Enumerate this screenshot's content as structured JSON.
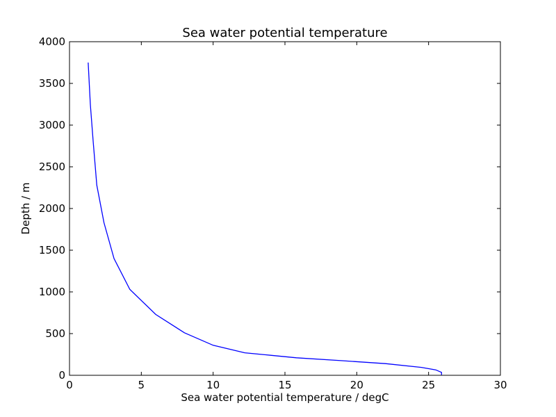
{
  "chart_data": {
    "type": "line",
    "title": "Sea water potential temperature",
    "xlabel": "Sea water potential temperature / degC",
    "ylabel": "Depth / m",
    "xlim": [
      0,
      30
    ],
    "ylim": [
      0,
      4000
    ],
    "xticks": [
      "0",
      "5",
      "10",
      "15",
      "20",
      "25",
      "30"
    ],
    "yticks": [
      "0",
      "500",
      "1000",
      "1500",
      "2000",
      "2500",
      "3000",
      "3500",
      "4000"
    ],
    "grid": false,
    "series": [
      {
        "color": "#0000ff",
        "points": [
          {
            "x": 25.9,
            "y": 5
          },
          {
            "x": 25.9,
            "y": 35
          },
          {
            "x": 25.5,
            "y": 65
          },
          {
            "x": 24.5,
            "y": 95
          },
          {
            "x": 22.0,
            "y": 140
          },
          {
            "x": 19.0,
            "y": 175
          },
          {
            "x": 15.8,
            "y": 210
          },
          {
            "x": 14.0,
            "y": 240
          },
          {
            "x": 12.2,
            "y": 270
          },
          {
            "x": 10.0,
            "y": 360
          },
          {
            "x": 8.0,
            "y": 510
          },
          {
            "x": 6.0,
            "y": 730
          },
          {
            "x": 4.2,
            "y": 1030
          },
          {
            "x": 3.1,
            "y": 1400
          },
          {
            "x": 2.4,
            "y": 1830
          },
          {
            "x": 1.9,
            "y": 2280
          },
          {
            "x": 1.65,
            "y": 2800
          },
          {
            "x": 1.45,
            "y": 3250
          },
          {
            "x": 1.3,
            "y": 3750
          }
        ]
      }
    ]
  }
}
